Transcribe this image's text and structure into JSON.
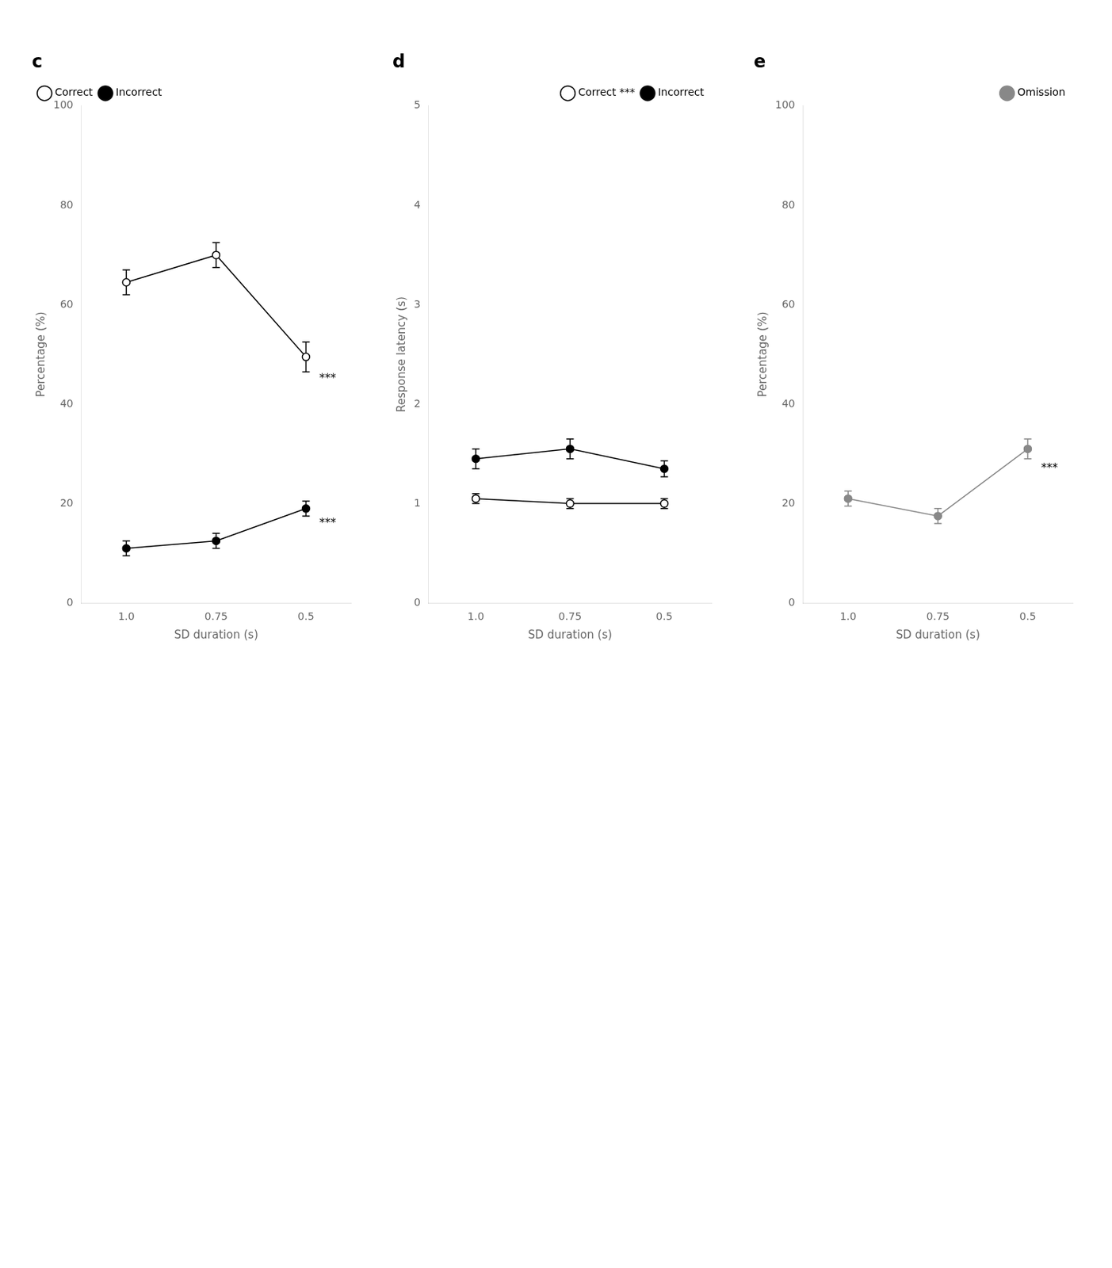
{
  "chart_data": [
    {
      "type": "line",
      "title": "c",
      "categories": [
        "1.0",
        "0.75",
        "0.5"
      ],
      "series": [
        {
          "name": "Correct",
          "color": "#000000",
          "marker": "circle_open",
          "line_style": "solid",
          "values": [
            64.5,
            70.0,
            49.5
          ],
          "error": [
            2.5,
            2.5,
            3.0
          ]
        },
        {
          "name": "Incorrect",
          "color": "#000000",
          "marker": "circle",
          "line_style": "solid",
          "values": [
            11.0,
            12.5,
            19.0
          ],
          "error": [
            1.5,
            1.5,
            1.5
          ]
        }
      ],
      "xlabel": "SD duration (s)",
      "ylabel": "Percentage (%)",
      "ylim": [
        0,
        100
      ],
      "yticks": [
        0,
        20,
        40,
        60,
        80,
        100
      ],
      "grid": false,
      "legend": "upper left",
      "annotations": [
        {
          "text": "***",
          "x": "0.5",
          "y": 45
        },
        {
          "text": "***",
          "x": "0.5",
          "y": 16
        }
      ]
    },
    {
      "type": "line",
      "title": "d",
      "categories": [
        "1.0",
        "0.75",
        "0.5"
      ],
      "series": [
        {
          "name": "Correct ***",
          "color": "#000000",
          "marker": "circle_open",
          "line_style": "solid",
          "values": [
            1.05,
            1.0,
            1.0
          ],
          "error": [
            0.05,
            0.05,
            0.05
          ]
        },
        {
          "name": "Incorrect",
          "color": "#000000",
          "marker": "circle",
          "line_style": "solid",
          "values": [
            1.45,
            1.55,
            1.35
          ],
          "error": [
            0.1,
            0.1,
            0.08
          ]
        }
      ],
      "xlabel": "SD duration (s)",
      "ylabel": "Response latency (s)",
      "ylim": [
        0,
        5
      ],
      "yticks": [
        0,
        1,
        2,
        3,
        4,
        5
      ],
      "grid": false,
      "legend": "upper right"
    },
    {
      "type": "line",
      "title": "e",
      "categories": [
        "1.0",
        "0.75",
        "0.5"
      ],
      "series": [
        {
          "name": "Omission",
          "color": "#888888",
          "marker": "circle",
          "line_style": "solid",
          "values": [
            21.0,
            17.5,
            31.0
          ],
          "error": [
            1.5,
            1.5,
            2.0
          ]
        }
      ],
      "xlabel": "SD duration (s)",
      "ylabel": "Percentage (%)",
      "ylim": [
        0,
        100
      ],
      "yticks": [
        0,
        20,
        40,
        60,
        80,
        100
      ],
      "grid": false,
      "legend": "upper right",
      "annotations": [
        {
          "text": "***",
          "x": "0.5",
          "y": 27
        }
      ]
    }
  ]
}
